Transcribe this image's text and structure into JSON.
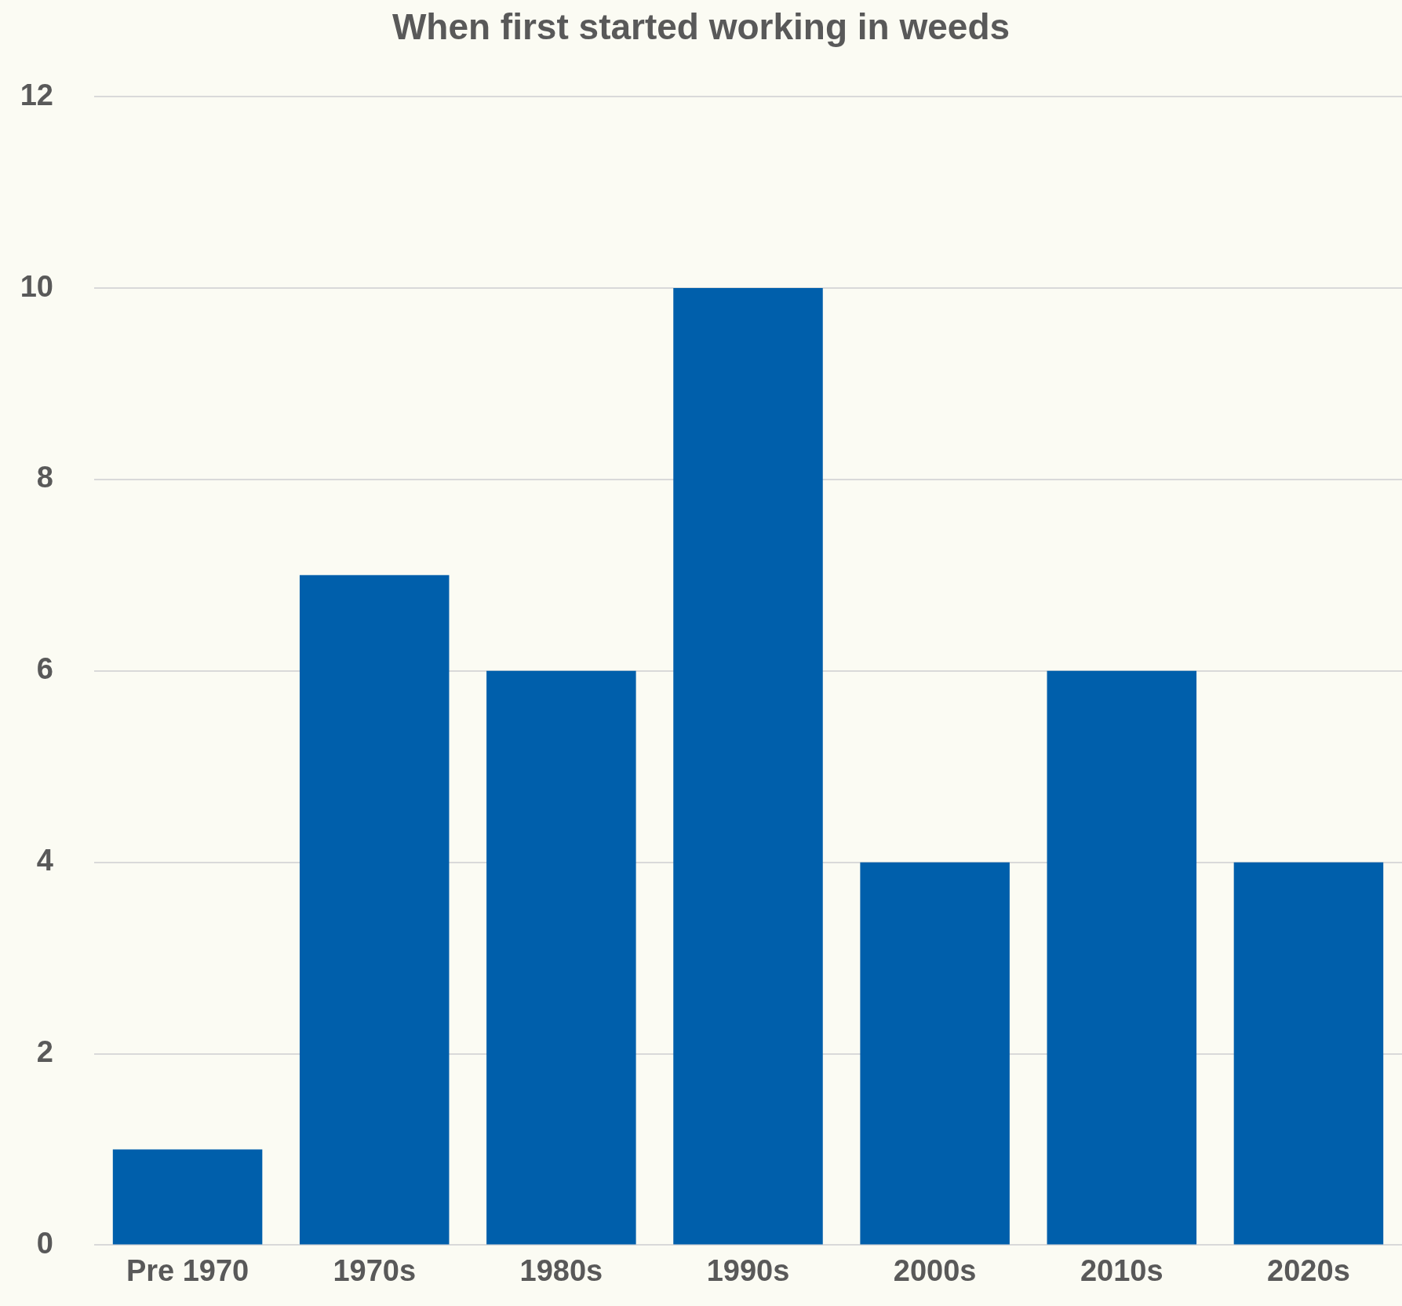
{
  "chart_data": {
    "type": "bar",
    "title": "When first started working in weeds",
    "categories": [
      "Pre 1970",
      "1970s",
      "1980s",
      "1990s",
      "2000s",
      "2010s",
      "2020s"
    ],
    "values": [
      1,
      7,
      6,
      10,
      4,
      6,
      4
    ],
    "color": "#005fab",
    "ylim": [
      0,
      12
    ],
    "yticks": [
      0,
      2,
      4,
      6,
      8,
      10,
      12
    ],
    "grid": "y",
    "legend": false
  }
}
